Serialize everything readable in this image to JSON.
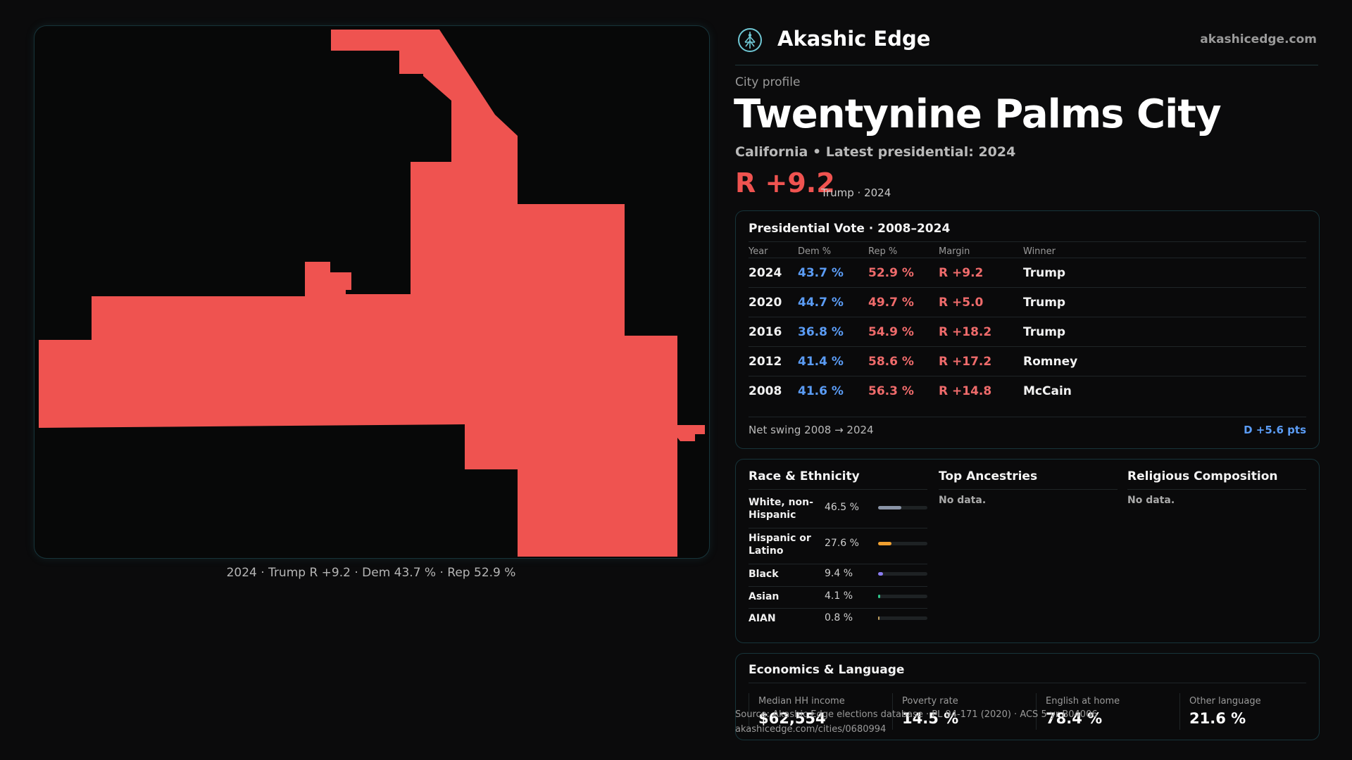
{
  "brand": {
    "name": "Akashic Edge",
    "url": "akashicedge.com",
    "logo_icon": "tree-of-life-icon"
  },
  "profile": {
    "eyebrow": "City profile",
    "title": "Twentynine Palms City",
    "subtitle": "California • Latest presidential: 2024",
    "margin": "R +9.2",
    "margin_note": "Trump · 2024"
  },
  "map": {
    "fill_color": "#ef5350",
    "caption": "2024 · Trump R +9.2 · Dem 43.7 % · Rep 52.9 %"
  },
  "presidential": {
    "title": "Presidential Vote · 2008–2024",
    "headers": [
      "Year",
      "Dem %",
      "Rep %",
      "Margin",
      "Winner"
    ],
    "rows": [
      [
        "2024",
        "43.7 %",
        "52.9 %",
        "R +9.2",
        "Trump"
      ],
      [
        "2020",
        "44.7 %",
        "49.7 %",
        "R +5.0",
        "Trump"
      ],
      [
        "2016",
        "36.8 %",
        "54.9 %",
        "R +18.2",
        "Trump"
      ],
      [
        "2012",
        "41.4 %",
        "58.6 %",
        "R +17.2",
        "Romney"
      ],
      [
        "2008",
        "41.6 %",
        "56.3 %",
        "R +14.8",
        "McCain"
      ]
    ],
    "swing_label": "Net swing 2008 → 2024",
    "swing_value": "D +5.6 pts"
  },
  "race": {
    "title": "Race & Ethnicity",
    "items": [
      {
        "label": "White, non-Hispanic",
        "value": "46.5 %",
        "pct": 46.5,
        "color": "#8a94a6"
      },
      {
        "label": "Hispanic or Latino",
        "value": "27.6 %",
        "pct": 27.6,
        "color": "#f0a030"
      },
      {
        "label": "Black",
        "value": "9.4 %",
        "pct": 9.4,
        "color": "#8a7cf0"
      },
      {
        "label": "Asian",
        "value": "4.1 %",
        "pct": 4.1,
        "color": "#2ec48a"
      },
      {
        "label": "AIAN",
        "value": "0.8 %",
        "pct": 0.8,
        "color": "#c0a060"
      }
    ]
  },
  "ancestries": {
    "title": "Top Ancestries",
    "empty": "No data."
  },
  "religion": {
    "title": "Religious Composition",
    "empty": "No data."
  },
  "economics": {
    "title": "Economics & Language",
    "items": [
      {
        "label": "Median HH income",
        "value": "$62,554"
      },
      {
        "label": "Poverty rate",
        "value": "14.5 %"
      },
      {
        "label": "English at home",
        "value": "78.4 %"
      },
      {
        "label": "Other language",
        "value": "21.6 %"
      }
    ]
  },
  "source": {
    "line1": "Source: Akashic Edge elections database · PL 94-171 (2020) · ACS 5-yr B04006",
    "line2": "akashicedge.com/cities/0680994"
  }
}
